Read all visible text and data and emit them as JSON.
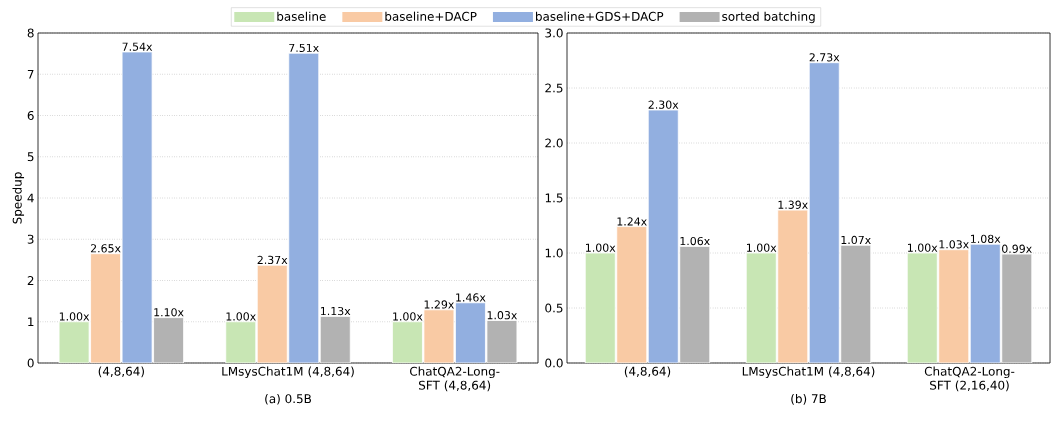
{
  "chart_data": [
    {
      "type": "bar",
      "categories": [
        "(4,8,64)",
        "LMsysChat1M (4,8,64)",
        "ChatQA2-Long-SFT (4,8,64)"
      ],
      "xlabel": "(a) 0.5B",
      "ylabel": "Speedup",
      "ylim": [
        0,
        8
      ],
      "yticks": [
        0,
        1,
        2,
        3,
        4,
        5,
        6,
        7,
        8
      ],
      "grid": "y",
      "legend": "top",
      "series": [
        {
          "name": "baseline",
          "color": "#c8e6b4",
          "values": [
            1.0,
            1.0,
            1.0
          ],
          "value_labels": [
            "1.00x",
            "1.00x",
            "1.00x"
          ]
        },
        {
          "name": "baseline+DACP",
          "color": "#f9caa4",
          "values": [
            2.65,
            2.37,
            1.29
          ],
          "value_labels": [
            "2.65x",
            "2.37x",
            "1.29x"
          ]
        },
        {
          "name": "baseline+GDS+DACP",
          "color": "#92afe0",
          "values": [
            7.54,
            7.51,
            1.46
          ],
          "value_labels": [
            "7.54x",
            "7.51x",
            "1.46x"
          ]
        },
        {
          "name": "sorted batching",
          "color": "#b2b2b2",
          "values": [
            1.1,
            1.13,
            1.03
          ],
          "value_labels": [
            "1.10x",
            "1.13x",
            "1.03x"
          ]
        }
      ]
    },
    {
      "type": "bar",
      "categories": [
        "(4,8,64)",
        "LMsysChat1M (4,8,64)",
        "ChatQA2-Long-SFT (2,16,40)"
      ],
      "xlabel": "(b) 7B",
      "ylim": [
        0,
        3
      ],
      "yticks": [
        {
          "value": 0,
          "label": "0.0"
        },
        {
          "value": 0.5,
          "label": "0.5"
        },
        {
          "value": 1,
          "label": "1.0"
        },
        {
          "value": 1.5,
          "label": "1.5"
        },
        {
          "value": 2,
          "label": "2.0"
        },
        {
          "value": 2.5,
          "label": "2.5"
        },
        {
          "value": 3,
          "label": "3.0"
        }
      ],
      "grid": "y",
      "series": [
        {
          "color": "#c8e6b4",
          "values": [
            1.0,
            1.0,
            1.0
          ],
          "value_labels": [
            "1.00x",
            "1.00x",
            "1.00x"
          ]
        },
        {
          "color": "#f9caa4",
          "values": [
            1.24,
            1.39,
            1.03
          ],
          "value_labels": [
            "1.24x",
            "1.39x",
            "1.03x"
          ]
        },
        {
          "color": "#92afe0",
          "values": [
            2.3,
            2.73,
            1.08
          ],
          "value_labels": [
            "2.30x",
            "2.73x",
            "1.08x"
          ]
        },
        {
          "color": "#b2b2b2",
          "values": [
            1.06,
            1.07,
            0.99
          ],
          "value_labels": [
            "1.06x",
            "1.07x",
            "0.99x"
          ]
        }
      ]
    }
  ]
}
